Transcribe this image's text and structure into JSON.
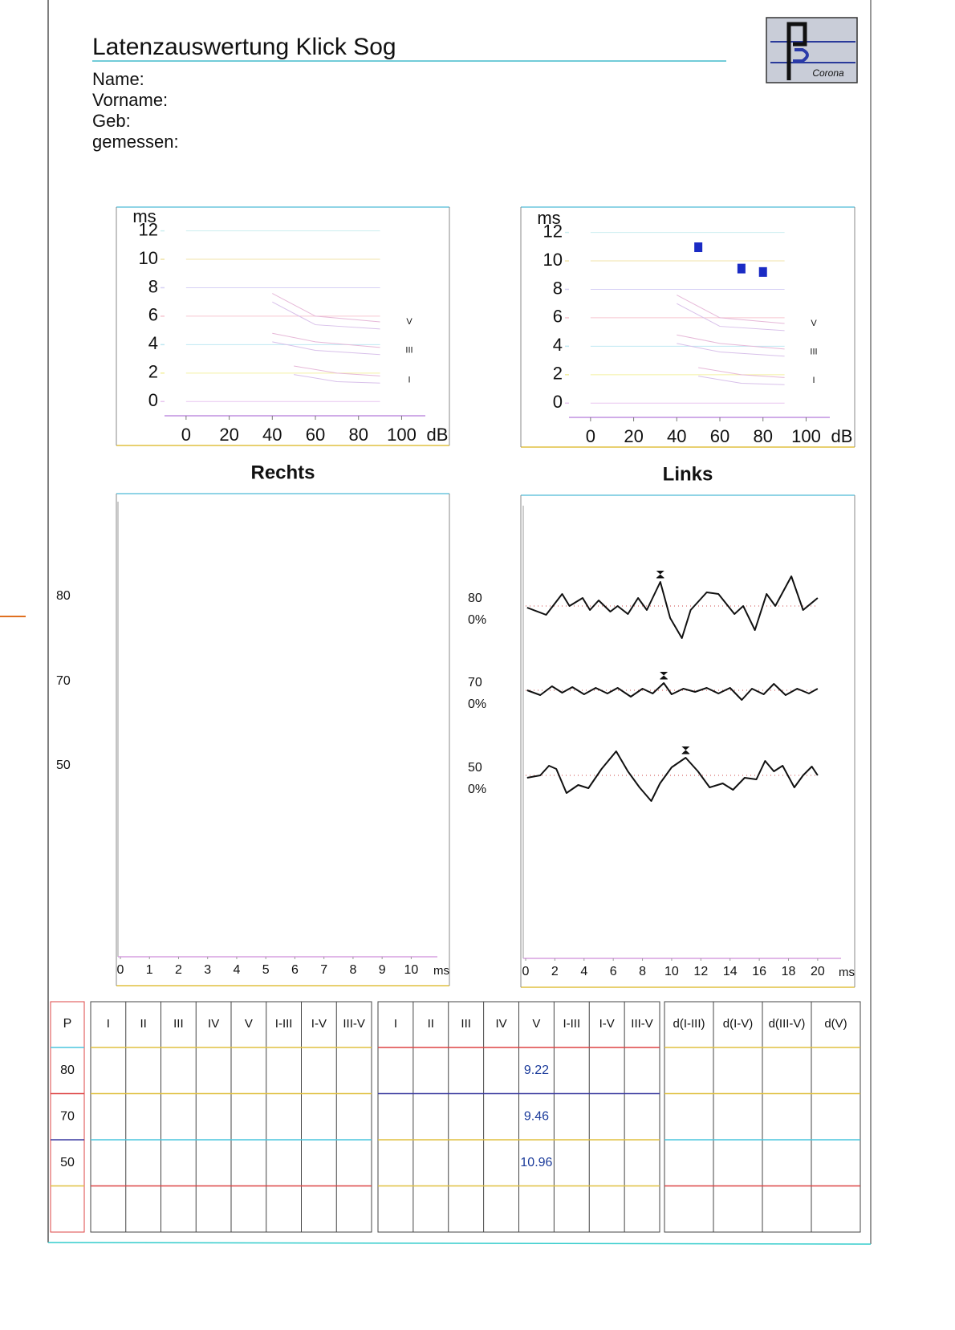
{
  "header": {
    "title": "Latenzauswertung Klick Sog",
    "logo_text": "Corona",
    "fields": [
      "Name:",
      "Vorname:",
      "Geb:",
      "gemessen:"
    ]
  },
  "chart_data": [
    {
      "type": "scatter",
      "y_label": "ms",
      "x_label": "dB",
      "xlim": [
        -10,
        111
      ],
      "ylim": [
        -1,
        13.5
      ],
      "xticks": [
        0,
        20,
        40,
        60,
        80,
        100
      ],
      "yticks": [
        0,
        2,
        4,
        6,
        8,
        10,
        12
      ],
      "grid": true,
      "annotations": [
        {
          "text": "V",
          "y": 5.6
        },
        {
          "text": "III",
          "y": 3.6
        },
        {
          "text": "I",
          "y": 1.5
        }
      ],
      "series": []
    },
    {
      "type": "scatter",
      "y_label": "ms",
      "x_label": "dB",
      "xlim": [
        -10,
        111
      ],
      "ylim": [
        -1,
        13.5
      ],
      "xticks": [
        0,
        20,
        40,
        60,
        80,
        100
      ],
      "yticks": [
        0,
        2,
        4,
        6,
        8,
        10,
        12
      ],
      "grid": true,
      "annotations": [
        {
          "text": "V",
          "y": 5.6
        },
        {
          "text": "III",
          "y": 3.6
        },
        {
          "text": "I",
          "y": 1.6
        }
      ],
      "series": [
        {
          "color": "#1a2bc4",
          "x": [
            50,
            70,
            80
          ],
          "values": [
            10.96,
            9.46,
            9.22
          ]
        }
      ]
    },
    {
      "type": "line",
      "title": "Rechts",
      "x_label": "ms",
      "xlim": [
        0,
        10.9
      ],
      "xticks": [
        0,
        1,
        2,
        3,
        4,
        5,
        6,
        7,
        8,
        9,
        10
      ],
      "series": [
        {
          "name": "80"
        },
        {
          "name": "70"
        },
        {
          "name": "50"
        }
      ]
    },
    {
      "type": "line",
      "title": "Links",
      "x_label": "ms",
      "xlim": [
        0,
        21.6
      ],
      "xticks": [
        0,
        2,
        4,
        6,
        8,
        10,
        12,
        14,
        16,
        18,
        20
      ],
      "series": [
        {
          "name": "80",
          "gain": "0%",
          "color": "#111111",
          "peak": 9.22,
          "x": [
            0.1,
            1.4,
            2.5,
            3.0,
            3.9,
            4.4,
            5.0,
            5.8,
            6.3,
            7.0,
            7.7,
            8.3,
            9.22,
            9.9,
            10.7,
            11.3,
            12.4,
            13.2,
            14.3,
            14.9,
            15.7,
            16.5,
            17.1,
            18.2,
            19.0,
            20.0
          ],
          "values": [
            -0.2,
            -1.1,
            1.5,
            0,
            1.0,
            -0.5,
            0.7,
            -0.7,
            0,
            -1.0,
            1.0,
            -0.5,
            3.0,
            -1.5,
            -4.0,
            -0.5,
            1.7,
            1.5,
            -1.0,
            0,
            -3.0,
            1.5,
            0,
            3.7,
            -0.5,
            1.0
          ]
        },
        {
          "name": "70",
          "gain": "0%",
          "color": "#111111",
          "peak": 9.46,
          "x": [
            0.1,
            1.0,
            1.8,
            2.5,
            3.2,
            4.0,
            4.8,
            5.6,
            6.3,
            7.2,
            8.0,
            8.7,
            9.46,
            10.0,
            10.8,
            11.6,
            12.4,
            13.2,
            14.0,
            14.8,
            15.5,
            16.3,
            17.0,
            17.8,
            18.6,
            19.4,
            20.0
          ],
          "values": [
            0,
            -0.6,
            0.5,
            -0.3,
            0.4,
            -0.5,
            0.3,
            -0.4,
            0.3,
            -0.8,
            0.2,
            -0.4,
            0.9,
            -0.5,
            0.2,
            -0.2,
            0.3,
            -0.4,
            0.3,
            -1.2,
            0.2,
            -0.5,
            0.8,
            -0.6,
            0.2,
            -0.4,
            0.2
          ]
        },
        {
          "name": "50",
          "gain": "0%",
          "color": "#111111",
          "peak": 10.96,
          "x": [
            0.1,
            1.0,
            1.6,
            2.1,
            2.8,
            3.6,
            4.3,
            5.2,
            6.2,
            7.0,
            7.8,
            8.6,
            9.2,
            10.0,
            10.96,
            11.8,
            12.6,
            13.5,
            14.2,
            15.0,
            15.8,
            16.4,
            17.0,
            17.6,
            18.4,
            19.0,
            19.6,
            20.0
          ],
          "values": [
            -0.3,
            0,
            1.2,
            0.8,
            -2.2,
            -1.2,
            -1.6,
            0.8,
            3.0,
            0.5,
            -1.5,
            -3.2,
            -1.0,
            1.0,
            2.2,
            0.5,
            -1.5,
            -1.0,
            -1.8,
            -0.3,
            -0.5,
            1.8,
            0.5,
            1.2,
            -1.5,
            0,
            1.1,
            0
          ]
        }
      ]
    }
  ],
  "table": {
    "p_header": "P",
    "p_values": [
      80,
      70,
      50
    ],
    "right_columns": [
      "I",
      "II",
      "III",
      "IV",
      "V",
      "I-III",
      "I-V",
      "III-V"
    ],
    "left_columns": [
      "I",
      "II",
      "III",
      "IV",
      "V",
      "I-III",
      "I-V",
      "III-V"
    ],
    "diff_columns": [
      "d(I-III)",
      "d(I-V)",
      "d(III-V)",
      "d(V)"
    ],
    "left_V_values": [
      9.22,
      9.46,
      10.96
    ]
  }
}
